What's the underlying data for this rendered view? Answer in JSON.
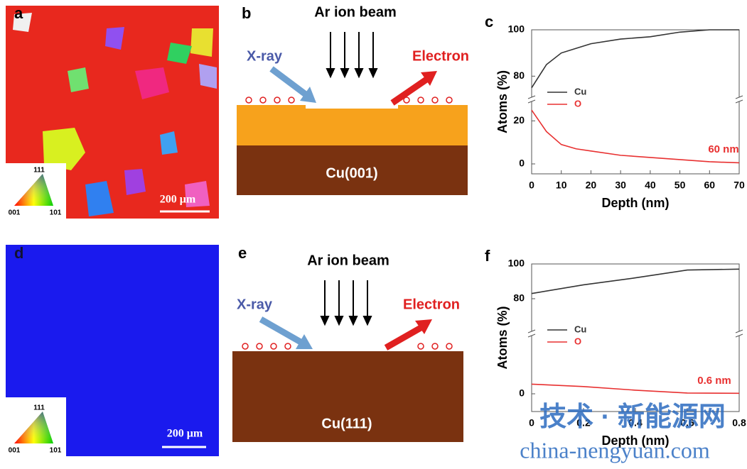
{
  "panels": {
    "a": {
      "label": "a",
      "scale_bar": "200 μm",
      "legend": [
        "111",
        "001",
        "101"
      ]
    },
    "b": {
      "label": "b",
      "beam": "Ar ion beam",
      "xray": "X-ray",
      "electron": "Electron",
      "substrate": "Cu(001)"
    },
    "d": {
      "label": "d",
      "scale_bar": "200 μm",
      "legend": [
        "111",
        "001",
        "101"
      ]
    },
    "e": {
      "label": "e",
      "beam": "Ar ion beam",
      "xray": "X-ray",
      "electron": "Electron",
      "substrate": "Cu(111)"
    }
  },
  "chart_data": [
    {
      "type": "line",
      "panel_label": "c",
      "xlabel": "Depth (nm)",
      "ylabel": "Atoms (%)",
      "x": [
        0,
        5,
        10,
        15,
        20,
        30,
        40,
        50,
        60,
        70
      ],
      "series": [
        {
          "name": "Cu",
          "color": "#333333",
          "values": [
            75,
            85,
            90,
            92,
            94,
            96,
            97,
            99,
            100,
            100
          ]
        },
        {
          "name": "O",
          "color": "#e83030",
          "values": [
            25,
            15,
            9,
            7,
            6,
            4,
            3,
            2,
            1,
            0.5
          ]
        }
      ],
      "xlim": [
        0,
        70
      ],
      "xticks": [
        0,
        10,
        20,
        30,
        40,
        50,
        60,
        70
      ],
      "ylim": [
        0,
        100
      ],
      "yticks": [
        0,
        20,
        80,
        100
      ],
      "ybreak": [
        30,
        70
      ],
      "annotation": "60 nm"
    },
    {
      "type": "line",
      "panel_label": "f",
      "xlabel": "Depth (nm)",
      "ylabel": "Atoms (%)",
      "x": [
        0,
        0.2,
        0.4,
        0.6,
        0.8
      ],
      "series": [
        {
          "name": "Cu",
          "color": "#333333",
          "values": [
            83,
            88,
            92,
            96.5,
            97
          ]
        },
        {
          "name": "O",
          "color": "#e83030",
          "values": [
            4,
            3,
            1.5,
            0.3,
            0.2
          ]
        }
      ],
      "xlim": [
        0,
        0.8
      ],
      "xticks": [
        0,
        0.2,
        0.4,
        0.6,
        0.8
      ],
      "ylim": [
        0,
        100
      ],
      "yticks": [
        0,
        80,
        100
      ],
      "ybreak": [
        25,
        60
      ],
      "annotation": "0.6 nm"
    }
  ],
  "watermark": [
    "技术 · 新能源网",
    "china-nengyuan.com"
  ]
}
